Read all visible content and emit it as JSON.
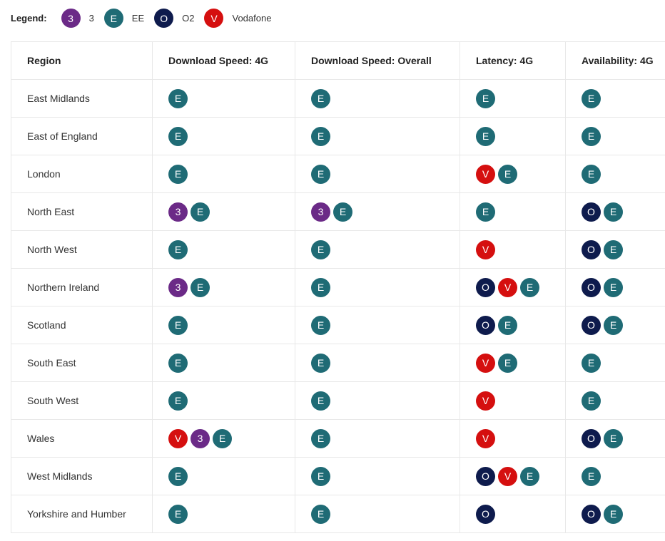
{
  "legend": {
    "label": "Legend:",
    "items": [
      {
        "key": "3",
        "letter": "3",
        "name": "3",
        "color": "#6b2a87"
      },
      {
        "key": "E",
        "letter": "E",
        "name": "EE",
        "color": "#1f6b75"
      },
      {
        "key": "O",
        "letter": "O",
        "name": "O2",
        "color": "#0e1b4d"
      },
      {
        "key": "V",
        "letter": "V",
        "name": "Vodafone",
        "color": "#d50f0f"
      }
    ]
  },
  "table": {
    "headers": [
      "Region",
      "Download Speed: 4G",
      "Download Speed: Overall",
      "Latency: 4G",
      "Availability: 4G"
    ],
    "rows": [
      {
        "region": "East Midlands",
        "cells": [
          [
            "E"
          ],
          [
            "E"
          ],
          [
            "E"
          ],
          [
            "E"
          ]
        ]
      },
      {
        "region": "East of England",
        "cells": [
          [
            "E"
          ],
          [
            "E"
          ],
          [
            "E"
          ],
          [
            "E"
          ]
        ]
      },
      {
        "region": "London",
        "cells": [
          [
            "E"
          ],
          [
            "E"
          ],
          [
            "V",
            "E"
          ],
          [
            "E"
          ]
        ]
      },
      {
        "region": "North East",
        "cells": [
          [
            "3",
            "E"
          ],
          [
            "3",
            "E"
          ],
          [
            "E"
          ],
          [
            "O",
            "E"
          ]
        ]
      },
      {
        "region": "North West",
        "cells": [
          [
            "E"
          ],
          [
            "E"
          ],
          [
            "V"
          ],
          [
            "O",
            "E"
          ]
        ]
      },
      {
        "region": "Northern Ireland",
        "cells": [
          [
            "3",
            "E"
          ],
          [
            "E"
          ],
          [
            "O",
            "V",
            "E"
          ],
          [
            "O",
            "E"
          ]
        ]
      },
      {
        "region": "Scotland",
        "cells": [
          [
            "E"
          ],
          [
            "E"
          ],
          [
            "O",
            "E"
          ],
          [
            "O",
            "E"
          ]
        ]
      },
      {
        "region": "South East",
        "cells": [
          [
            "E"
          ],
          [
            "E"
          ],
          [
            "V",
            "E"
          ],
          [
            "E"
          ]
        ]
      },
      {
        "region": "South West",
        "cells": [
          [
            "E"
          ],
          [
            "E"
          ],
          [
            "V"
          ],
          [
            "E"
          ]
        ]
      },
      {
        "region": "Wales",
        "cells": [
          [
            "V",
            "3",
            "E"
          ],
          [
            "E"
          ],
          [
            "V"
          ],
          [
            "O",
            "E"
          ]
        ]
      },
      {
        "region": "West Midlands",
        "cells": [
          [
            "E"
          ],
          [
            "E"
          ],
          [
            "O",
            "V",
            "E"
          ],
          [
            "E"
          ]
        ]
      },
      {
        "region": "Yorkshire and Humber",
        "cells": [
          [
            "E"
          ],
          [
            "E"
          ],
          [
            "O"
          ],
          [
            "O",
            "E"
          ]
        ]
      }
    ]
  }
}
